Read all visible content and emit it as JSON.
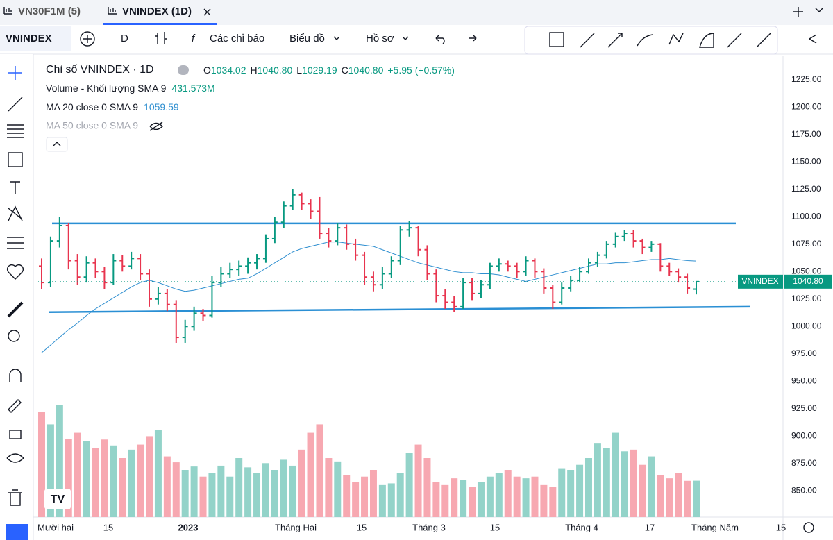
{
  "tabs": [
    "VN30F1M (5)",
    "VNINDEX (1D)"
  ],
  "toolbar": {
    "symbol": "VNINDEX",
    "interval": "D",
    "indicators": "Các chỉ báo",
    "chart": "Biểu đồ",
    "profile": "Hồ sơ"
  },
  "legend": {
    "title": "Chỉ số VNINDEX · 1D",
    "o": "O",
    "h": "H",
    "l": "L",
    "c": "C",
    "last": "1040.80",
    "change": "+5.95 (+0.57%)",
    "volume_name": "Volume - Khối lượng SMA 9",
    "volume_value": "431.573M",
    "ma20_name": "MA 20 close 0 SMA 9",
    "ma50_name": "MA 50 close 0 SMA 9"
  },
  "price_tag": "VNINDEX",
  "chart_data": {
    "type": "ohlc",
    "bars": [
      [
        1055,
        1062,
        1034,
        1040
      ],
      [
        1040,
        1082,
        1036,
        1078
      ],
      [
        1078,
        1100,
        1072,
        1092
      ],
      [
        1092,
        1094,
        1052,
        1060
      ],
      [
        1060,
        1066,
        1038,
        1045
      ],
      [
        1045,
        1064,
        1040,
        1058
      ],
      [
        1058,
        1062,
        1044,
        1050
      ],
      [
        1050,
        1054,
        1034,
        1040
      ],
      [
        1040,
        1066,
        1038,
        1060
      ],
      [
        1060,
        1065,
        1050,
        1055
      ],
      [
        1055,
        1068,
        1052,
        1062
      ],
      [
        1062,
        1066,
        1042,
        1048
      ],
      [
        1048,
        1052,
        1018,
        1025
      ],
      [
        1025,
        1036,
        1020,
        1030
      ],
      [
        1030,
        1034,
        1014,
        1020
      ],
      [
        1020,
        1024,
        985,
        990
      ],
      [
        990,
        1006,
        985,
        1000
      ],
      [
        1000,
        1018,
        996,
        1012
      ],
      [
        1012,
        1016,
        1005,
        1010
      ],
      [
        1010,
        1046,
        1008,
        1040
      ],
      [
        1040,
        1054,
        1036,
        1048
      ],
      [
        1048,
        1058,
        1044,
        1052
      ],
      [
        1052,
        1060,
        1046,
        1055
      ],
      [
        1055,
        1063,
        1048,
        1058
      ],
      [
        1058,
        1066,
        1052,
        1062
      ],
      [
        1062,
        1084,
        1058,
        1080
      ],
      [
        1080,
        1100,
        1076,
        1095
      ],
      [
        1095,
        1114,
        1090,
        1110
      ],
      [
        1110,
        1125,
        1106,
        1120
      ],
      [
        1120,
        1122,
        1106,
        1112
      ],
      [
        1112,
        1116,
        1098,
        1105
      ],
      [
        1105,
        1118,
        1080,
        1085
      ],
      [
        1085,
        1090,
        1072,
        1078
      ],
      [
        1078,
        1094,
        1074,
        1090
      ],
      [
        1090,
        1093,
        1070,
        1075
      ],
      [
        1075,
        1080,
        1060,
        1065
      ],
      [
        1065,
        1068,
        1038,
        1045
      ],
      [
        1045,
        1050,
        1032,
        1038
      ],
      [
        1038,
        1054,
        1034,
        1048
      ],
      [
        1048,
        1064,
        1044,
        1060
      ],
      [
        1060,
        1092,
        1056,
        1088
      ],
      [
        1088,
        1096,
        1082,
        1090
      ],
      [
        1090,
        1092,
        1064,
        1070
      ],
      [
        1070,
        1074,
        1042,
        1048
      ],
      [
        1048,
        1052,
        1022,
        1028
      ],
      [
        1028,
        1034,
        1016,
        1022
      ],
      [
        1022,
        1028,
        1013,
        1018
      ],
      [
        1018,
        1044,
        1016,
        1040
      ],
      [
        1040,
        1044,
        1024,
        1030
      ],
      [
        1030,
        1042,
        1026,
        1038
      ],
      [
        1038,
        1058,
        1034,
        1055
      ],
      [
        1055,
        1062,
        1050,
        1057
      ],
      [
        1057,
        1060,
        1050,
        1055
      ],
      [
        1055,
        1058,
        1044,
        1050
      ],
      [
        1050,
        1064,
        1046,
        1060
      ],
      [
        1060,
        1062,
        1044,
        1050
      ],
      [
        1050,
        1053,
        1030,
        1035
      ],
      [
        1035,
        1038,
        1016,
        1022
      ],
      [
        1022,
        1040,
        1020,
        1035
      ],
      [
        1035,
        1046,
        1032,
        1042
      ],
      [
        1042,
        1054,
        1040,
        1050
      ],
      [
        1050,
        1062,
        1048,
        1058
      ],
      [
        1058,
        1068,
        1054,
        1065
      ],
      [
        1065,
        1078,
        1062,
        1075
      ],
      [
        1075,
        1086,
        1072,
        1082
      ],
      [
        1082,
        1088,
        1078,
        1085
      ],
      [
        1085,
        1088,
        1072,
        1078
      ],
      [
        1078,
        1080,
        1066,
        1072
      ],
      [
        1072,
        1078,
        1068,
        1075
      ],
      [
        1075,
        1076,
        1050,
        1055
      ],
      [
        1055,
        1058,
        1046,
        1050
      ],
      [
        1050,
        1053,
        1040,
        1045
      ],
      [
        1045,
        1048,
        1030,
        1035
      ],
      [
        1034.02,
        1040.8,
        1029.19,
        1040.8
      ]
    ],
    "volume": [
      1250,
      1100,
      1330,
      930,
      1000,
      900,
      820,
      920,
      850,
      700,
      800,
      860,
      960,
      1030,
      720,
      650,
      560,
      600,
      480,
      520,
      610,
      480,
      700,
      590,
      520,
      640,
      560,
      680,
      610,
      800,
      1000,
      1100,
      700,
      660,
      500,
      420,
      480,
      560,
      380,
      400,
      520,
      760,
      860,
      700,
      420,
      380,
      460,
      440,
      360,
      420,
      480,
      520,
      560,
      480,
      460,
      480,
      380,
      360,
      580,
      560,
      620,
      700,
      880,
      820,
      1000,
      780,
      800,
      620,
      720,
      500,
      460,
      520,
      430,
      431.573
    ],
    "ma20": [
      976,
      983,
      990,
      997,
      1003,
      1010,
      1016,
      1021,
      1026,
      1031,
      1036,
      1040,
      1042,
      1040,
      1037,
      1034,
      1032,
      1033,
      1035,
      1037,
      1039,
      1041,
      1043,
      1044,
      1048,
      1053,
      1058,
      1063,
      1068,
      1071,
      1073,
      1075,
      1077,
      1077,
      1076,
      1075,
      1074,
      1073,
      1070,
      1067,
      1064,
      1061,
      1058,
      1056,
      1054,
      1052,
      1050,
      1049,
      1049,
      1048,
      1048,
      1047,
      1045,
      1043,
      1041,
      1043,
      1045,
      1047,
      1049,
      1051,
      1053,
      1055,
      1057,
      1057,
      1058,
      1058,
      1059,
      1060,
      1061,
      1061,
      1062,
      1061,
      1060,
      1059.59
    ],
    "levels": [
      [
        1094,
        1094
      ],
      [
        1013,
        1018
      ]
    ],
    "up_color": "#089981",
    "down_color": "#e8344e",
    "volume_up_color": "#93d3c9",
    "volume_down_color": "#f7a8b1",
    "ma_color": "#2f8fd0",
    "level_color": "#2a8fd4",
    "ylim": [
      826,
      1244
    ],
    "volume_lim": [
      0,
      1400
    ],
    "yticks": [
      {
        "value": 850,
        "label": "850.00"
      },
      {
        "value": 875,
        "label": "875.00"
      },
      {
        "value": 900,
        "label": "900.00"
      },
      {
        "value": 925,
        "label": "925.00"
      },
      {
        "value": 950,
        "label": "950.00"
      },
      {
        "value": 975,
        "label": "975.00"
      },
      {
        "value": 1000,
        "label": "1000.00"
      },
      {
        "value": 1025,
        "label": "1025.00"
      },
      {
        "value": 1050,
        "label": "1050.00"
      },
      {
        "value": 1075,
        "label": "1075.00"
      },
      {
        "value": 1100,
        "label": "1100.00"
      },
      {
        "value": 1125,
        "label": "1125.00"
      },
      {
        "value": 1150,
        "label": "1150.00"
      },
      {
        "value": 1175,
        "label": "1175.00"
      },
      {
        "value": 1200,
        "label": "1200.00"
      },
      {
        "value": 1225,
        "label": "1225.00"
      }
    ],
    "x_labels": [
      "Mười hai",
      "15",
      "2023",
      "Tháng Hai",
      "15",
      "Tháng 3",
      "15",
      "Tháng 4",
      "17",
      "Tháng Năm",
      "15"
    ]
  }
}
